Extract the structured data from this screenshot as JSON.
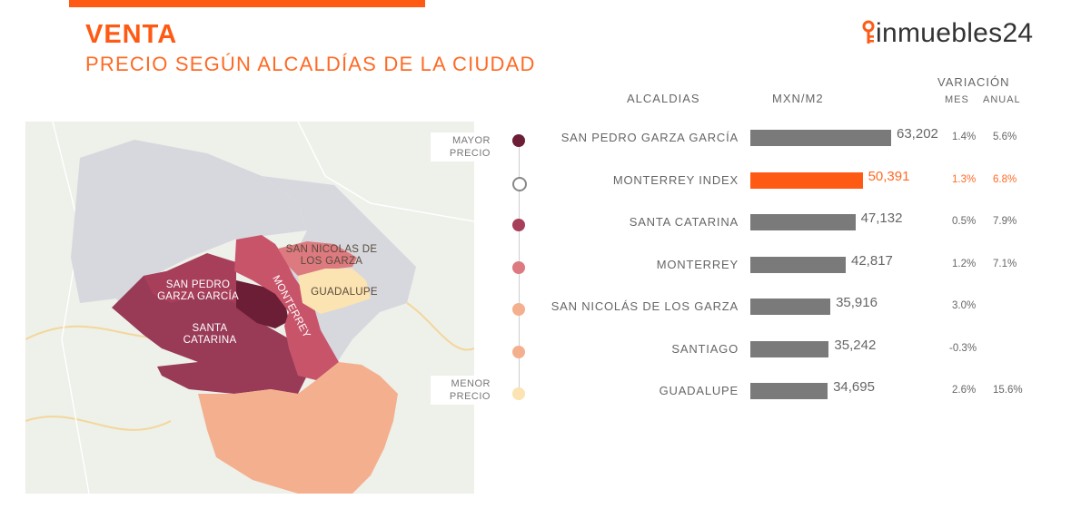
{
  "header": {
    "title": "VENTA",
    "subtitle": "PRECIO SEGÚN ALCALDÍAS DE LA CIUDAD",
    "logo_text": "inmuebles24"
  },
  "map": {
    "labels": {
      "san_pedro": "SAN PEDRO GARZA GARCÍA",
      "santa_catarina": "SANTA CATARINA",
      "monterrey": "MONTERREY",
      "san_nicolas": "SAN NICOLAS DE LOS GARZA",
      "guadalupe": "GUADALUPE"
    },
    "scale_high": "MAYOR PRECIO",
    "scale_low": "MENOR PRECIO"
  },
  "colors": {
    "accent": "#ff5a14",
    "bar": "#7a7a7a",
    "tier1": "#6b1e35",
    "tier2": "#a73e5a",
    "tier3": "#dc7a80",
    "tier4": "#f4b08e",
    "tier5": "#fbe3b2"
  },
  "table": {
    "col_alcaldias": "ALCALDIAS",
    "col_price": "MXN/M2",
    "col_variacion": "VARIACIÓN",
    "col_mes": "MES",
    "col_anual": "ANUAL"
  },
  "chart_data": {
    "type": "bar",
    "title": "PRECIO SEGÚN ALCALDÍAS DE LA CIUDAD",
    "xlabel": "MXN/M2",
    "ylabel": "ALCALDIAS",
    "xlim": [
      0,
      70000
    ],
    "categories": [
      "SAN PEDRO GARZA GARCÍA",
      "MONTERREY INDEX",
      "SANTA CATARINA",
      "MONTERREY",
      "SAN NICOLÁS DE LOS GARZA",
      "SANTIAGO",
      "GUADALUPE"
    ],
    "values": [
      63202,
      50391,
      47132,
      42817,
      35916,
      35242,
      34695
    ],
    "value_labels": [
      "63,202",
      "50,391",
      "47,132",
      "42,817",
      "35,916",
      "35,242",
      "34,695"
    ],
    "variacion_mes": [
      "1.4%",
      "1.3%",
      "0.5%",
      "1.2%",
      "3.0%",
      "-0.3%",
      "2.6%"
    ],
    "variacion_anual": [
      "5.6%",
      "6.8%",
      "7.9%",
      "7.1%",
      "",
      "",
      "15.6%"
    ],
    "highlight_index": 1,
    "legend_colors": [
      "#6b1e35",
      "none",
      "#a73e5a",
      "#dc7a80",
      "#f4b08e",
      "#f4b08e",
      "#fbe3b2"
    ]
  }
}
